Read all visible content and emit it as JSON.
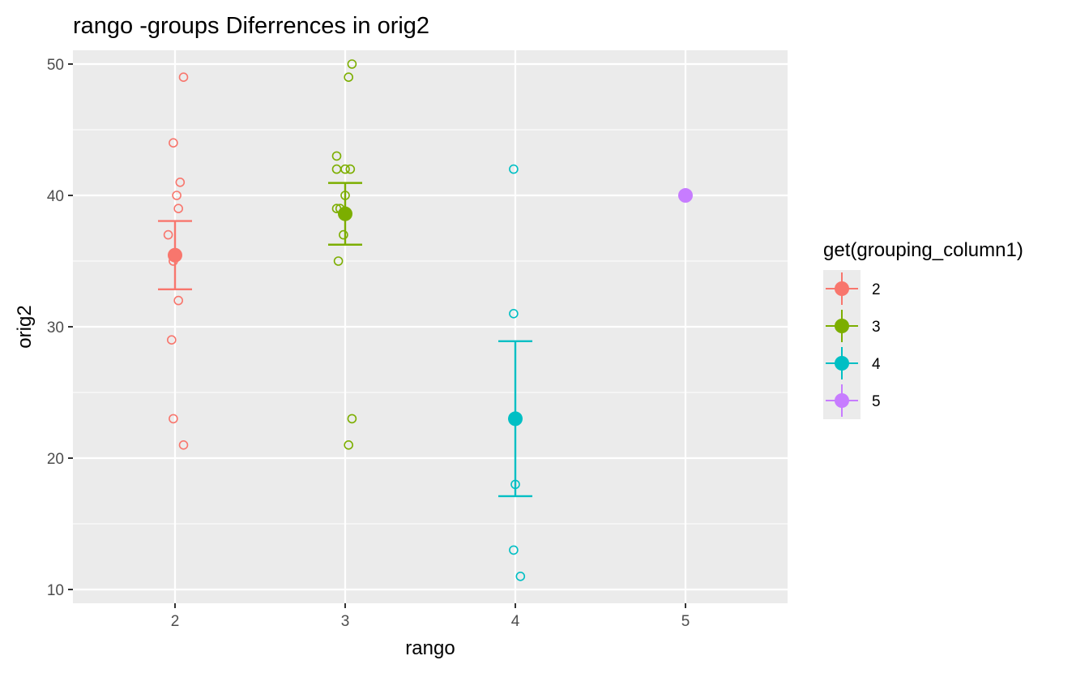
{
  "chart_data": {
    "type": "scatter",
    "title": "rango -groups Diferrences in  orig2",
    "xlabel": "rango",
    "ylabel": "orig2",
    "x_ticks": [
      "2",
      "3",
      "4",
      "5"
    ],
    "y_ticks": [
      "10",
      "20",
      "30",
      "40",
      "50"
    ],
    "xlim": [
      1.4,
      5.6
    ],
    "ylim": [
      8.95,
      51.05
    ],
    "grid": true,
    "legend": {
      "title": "get(grouping_column1)",
      "placement": "right",
      "entries": [
        {
          "label": "2",
          "color": "#F8766D"
        },
        {
          "label": "3",
          "color": "#7CAE00"
        },
        {
          "label": "4",
          "color": "#00BFC4"
        },
        {
          "label": "5",
          "color": "#C77CFF"
        }
      ]
    },
    "groups": [
      {
        "label": "2",
        "color": "#F8766D",
        "x_group": 2,
        "points": [
          {
            "x": 2.05,
            "y": 49
          },
          {
            "x": 1.99,
            "y": 44
          },
          {
            "x": 2.03,
            "y": 41
          },
          {
            "x": 2.01,
            "y": 40
          },
          {
            "x": 2.02,
            "y": 39
          },
          {
            "x": 1.96,
            "y": 37
          },
          {
            "x": 1.99,
            "y": 35
          },
          {
            "x": 2.02,
            "y": 32
          },
          {
            "x": 1.98,
            "y": 29
          },
          {
            "x": 1.99,
            "y": 23
          },
          {
            "x": 2.05,
            "y": 21
          }
        ],
        "mean": 35.45,
        "se_low": 32.85,
        "se_high": 38.05
      },
      {
        "label": "3",
        "color": "#7CAE00",
        "x_group": 3,
        "points": [
          {
            "x": 3.04,
            "y": 50
          },
          {
            "x": 3.02,
            "y": 49
          },
          {
            "x": 2.95,
            "y": 43
          },
          {
            "x": 2.95,
            "y": 42
          },
          {
            "x": 3.0,
            "y": 42
          },
          {
            "x": 3.03,
            "y": 42
          },
          {
            "x": 3.0,
            "y": 40
          },
          {
            "x": 2.95,
            "y": 39
          },
          {
            "x": 2.97,
            "y": 39
          },
          {
            "x": 2.99,
            "y": 37
          },
          {
            "x": 2.96,
            "y": 35
          },
          {
            "x": 3.04,
            "y": 23
          },
          {
            "x": 3.02,
            "y": 21
          }
        ],
        "mean": 38.6,
        "se_low": 36.25,
        "se_high": 40.95
      },
      {
        "label": "4",
        "color": "#00BFC4",
        "x_group": 4,
        "points": [
          {
            "x": 3.99,
            "y": 42
          },
          {
            "x": 3.99,
            "y": 31
          },
          {
            "x": 4.0,
            "y": 18
          },
          {
            "x": 3.99,
            "y": 13
          },
          {
            "x": 4.03,
            "y": 11
          }
        ],
        "mean": 23.0,
        "se_low": 17.1,
        "se_high": 28.9
      },
      {
        "label": "5",
        "color": "#C77CFF",
        "x_group": 5,
        "points": [
          {
            "x": 5.0,
            "y": 40
          }
        ],
        "mean": 40.0,
        "se_low": 40.0,
        "se_high": 40.0
      }
    ]
  }
}
